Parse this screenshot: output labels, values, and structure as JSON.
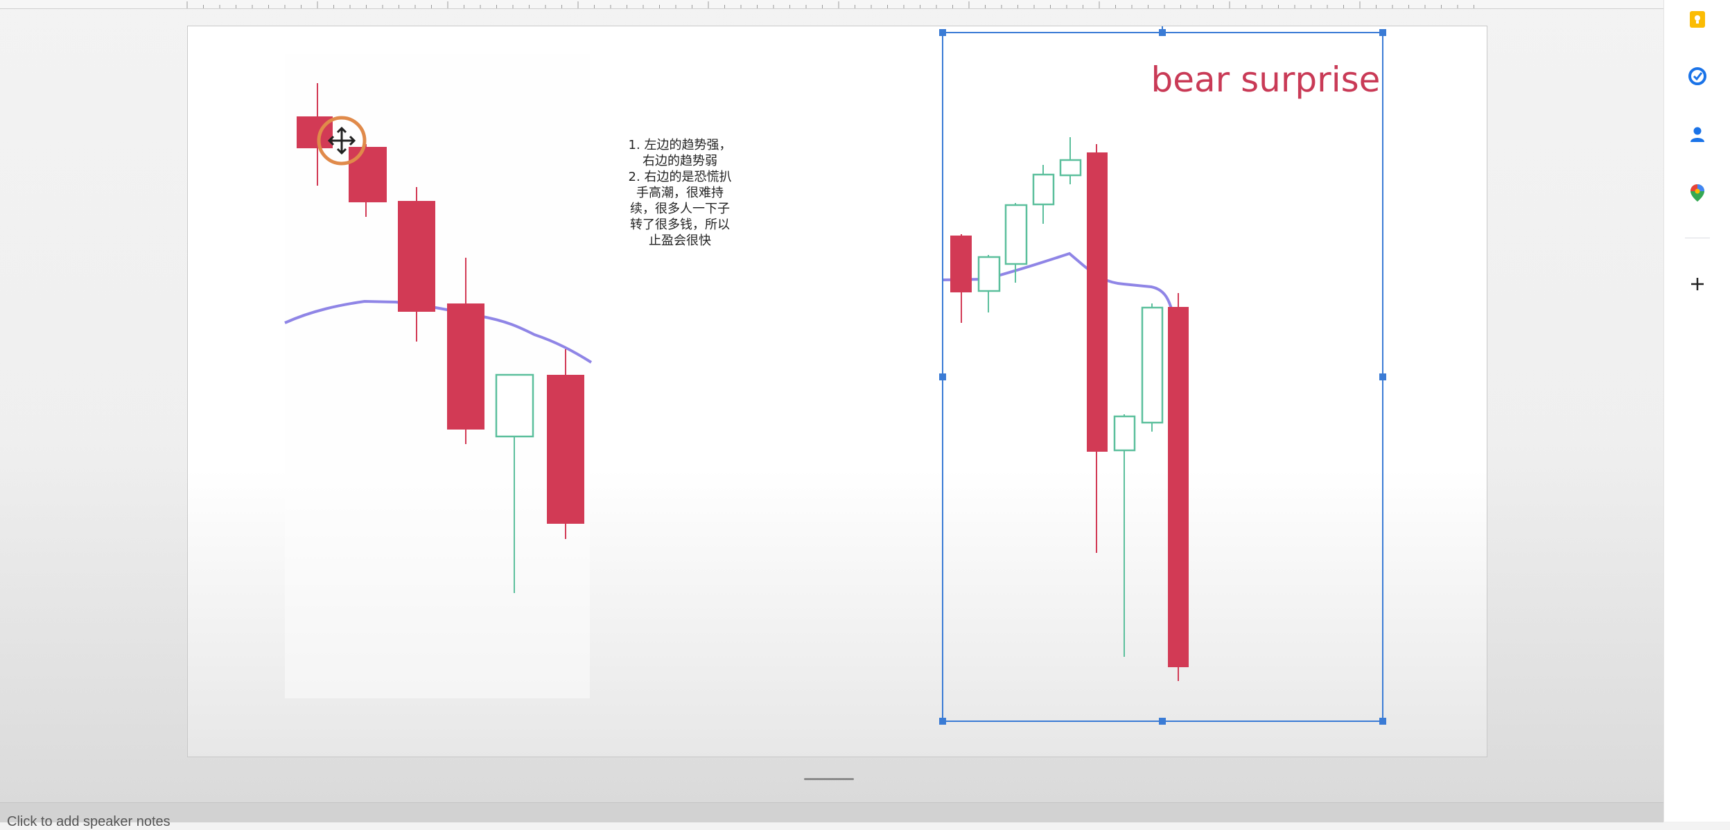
{
  "slide": {
    "note_text": "1. 左边的趋势强，\n右边的趋势弱\n2. 右边的是恐慌扒\n手高潮，很难持\n续，很多人一下子\n转了很多钱，所以\n止盈会很快",
    "image_title": "bear surprise"
  },
  "notes": {
    "placeholder": "Click to add speaker notes"
  },
  "side_panel": {
    "icons": [
      "keep-icon",
      "tasks-icon",
      "contacts-icon",
      "maps-icon",
      "add-icon"
    ]
  },
  "colors": {
    "bear_candle": "#d23a55",
    "bull_candle": "#5bbf9c",
    "moving_average": "#8f85e6",
    "selection": "#3a7bd5",
    "cursor_ring": "#e08a4a"
  }
}
